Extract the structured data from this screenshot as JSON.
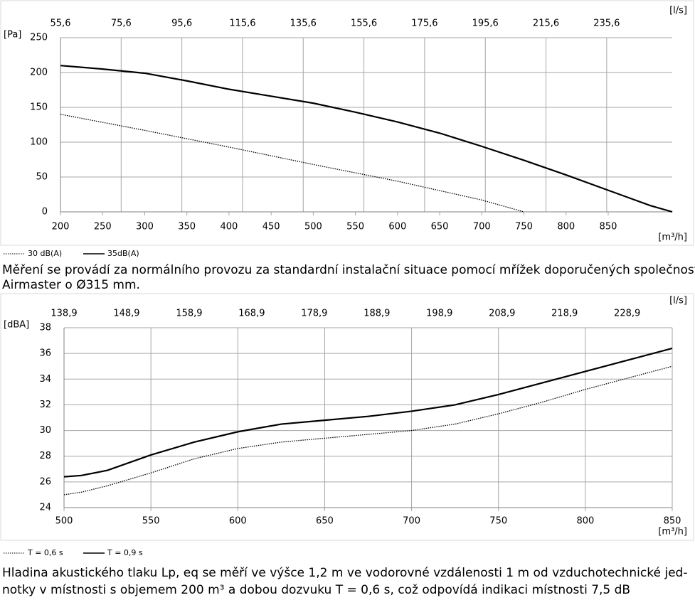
{
  "chart_data": [
    {
      "type": "line",
      "y_label": "[Pa]",
      "x_label": "[m³/h]",
      "x2_label": "[l/s]",
      "xlim": [
        200,
        926
      ],
      "xticks": [
        200,
        250,
        300,
        350,
        400,
        450,
        500,
        550,
        600,
        650,
        700,
        750,
        800,
        850
      ],
      "x2lim": [
        55.6,
        257.2
      ],
      "x2ticks": [
        {
          "value": 55.6,
          "label": "55,6"
        },
        {
          "value": 75.6,
          "label": "75,6"
        },
        {
          "value": 95.6,
          "label": "95,6"
        },
        {
          "value": 115.6,
          "label": "115,6"
        },
        {
          "value": 135.6,
          "label": "135,6"
        },
        {
          "value": 155.6,
          "label": "155,6"
        },
        {
          "value": 175.6,
          "label": "175,6"
        },
        {
          "value": 195.6,
          "label": "195,6"
        },
        {
          "value": 215.6,
          "label": "215,6"
        },
        {
          "value": 235.6,
          "label": "235,6"
        }
      ],
      "ylim": [
        0,
        250
      ],
      "yticks": [
        0,
        50,
        100,
        150,
        200,
        250
      ],
      "grid": true,
      "vertical_grid": "x2",
      "series": [
        {
          "name": "30 dB(A)",
          "color": "#000000",
          "line_style": "dotted",
          "x": [
            200,
            300,
            400,
            500,
            600,
            700,
            750
          ],
          "values": [
            140,
            117,
            93,
            68,
            44,
            17,
            0
          ]
        },
        {
          "name": "35dB(A)",
          "color": "#000000",
          "line_style": "solid",
          "x": [
            200,
            250,
            300,
            350,
            400,
            450,
            500,
            550,
            600,
            650,
            700,
            750,
            800,
            850,
            900,
            926
          ],
          "values": [
            210,
            205,
            199,
            188,
            176,
            166,
            156,
            143,
            129,
            113,
            94,
            74,
            53,
            31,
            9,
            0
          ]
        }
      ],
      "caption": [
        "Měření se provádí za normálního provozu za standardní instalační situace pomocí mřížek doporučených společností",
        "Airmaster o Ø315 mm."
      ]
    },
    {
      "type": "line",
      "y_label": "[dBA]",
      "x_label": "[m³/h]",
      "x2_label": "[l/s]",
      "xlim": [
        500,
        850
      ],
      "xticks": [
        500,
        550,
        600,
        650,
        700,
        750,
        800,
        850
      ],
      "x2lim": [
        138.9,
        236.1
      ],
      "x2ticks": [
        {
          "value": 138.9,
          "label": "138,9"
        },
        {
          "value": 148.9,
          "label": "148,9"
        },
        {
          "value": 158.9,
          "label": "158,9"
        },
        {
          "value": 168.9,
          "label": "168,9"
        },
        {
          "value": 178.9,
          "label": "178,9"
        },
        {
          "value": 188.9,
          "label": "188,9"
        },
        {
          "value": 198.9,
          "label": "198,9"
        },
        {
          "value": 208.9,
          "label": "208,9"
        },
        {
          "value": 218.9,
          "label": "218,9"
        },
        {
          "value": 228.9,
          "label": "228,9"
        }
      ],
      "ylim": [
        24,
        38
      ],
      "yticks": [
        24,
        26,
        28,
        30,
        32,
        34,
        36,
        38
      ],
      "grid": true,
      "vertical_grid": "x",
      "series": [
        {
          "name": "T = 0,6 s",
          "color": "#000000",
          "line_style": "dotted",
          "x": [
            500,
            510,
            525,
            550,
            575,
            600,
            625,
            650,
            675,
            700,
            725,
            750,
            775,
            800,
            825,
            850
          ],
          "values": [
            25.0,
            25.2,
            25.7,
            26.7,
            27.8,
            28.6,
            29.1,
            29.4,
            29.7,
            30.0,
            30.5,
            31.3,
            32.2,
            33.2,
            34.1,
            35.0
          ]
        },
        {
          "name": "T = 0,9 s",
          "color": "#000000",
          "line_style": "solid",
          "x": [
            500,
            510,
            525,
            550,
            575,
            600,
            625,
            650,
            675,
            700,
            725,
            750,
            775,
            800,
            825,
            850
          ],
          "values": [
            26.4,
            26.5,
            26.9,
            28.1,
            29.1,
            29.9,
            30.5,
            30.8,
            31.1,
            31.5,
            32.0,
            32.8,
            33.7,
            34.6,
            35.5,
            36.4
          ]
        }
      ],
      "caption": [
        "Hladina akustického tlaku Lp, eq se měří ve výšce 1,2 m ve vodorovné vzdálenosti 1 m od vzduchotechnické jed-",
        "notky v místnosti s objemem 200 m³ a dobou dozvuku T = 0,6 s, což odpovídá indikaci místnosti 7,5 dB"
      ]
    }
  ]
}
